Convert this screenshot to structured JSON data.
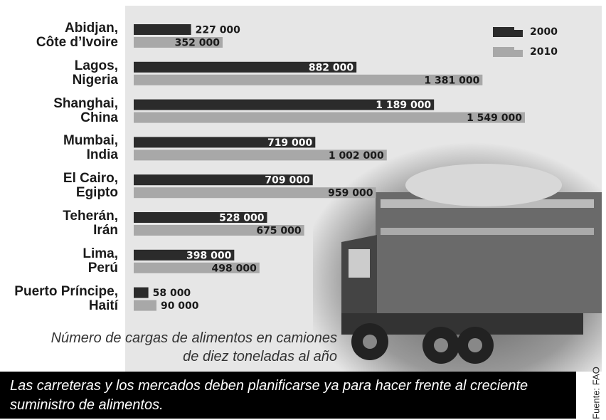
{
  "chart_data": {
    "type": "bar",
    "orientation": "horizontal",
    "categories": [
      "Abidjan,\nCôte d’Ivoire",
      "Lagos,\nNigeria",
      "Shanghai,\nChina",
      "Mumbai,\nIndia",
      "El Cairo,\nEgipto",
      "Teherán,\nIrán",
      "Lima,\nPerú",
      "Puerto Príncipe,\nHaití"
    ],
    "series": [
      {
        "name": "2000",
        "color": "#2b2b2b",
        "values": [
          227000,
          882000,
          1189000,
          719000,
          709000,
          528000,
          398000,
          58000
        ],
        "value_labels": [
          "227 000",
          "882 000",
          "1 189 000",
          "719 000",
          "709 000",
          "528 000",
          "398 000",
          "58 000"
        ]
      },
      {
        "name": "2010",
        "color": "#a8a8a8",
        "values": [
          352000,
          1381000,
          1549000,
          1002000,
          959000,
          675000,
          498000,
          90000
        ],
        "value_labels": [
          "352 000",
          "1 381 000",
          "1 549 000",
          "1 002 000",
          "959 000",
          "675 000",
          "498 000",
          "90 000"
        ]
      }
    ],
    "caption": "Número de cargas de alimentos en camiones\nde diez toneladas al año",
    "note": "Las carreteras y los mercados deben planificarse ya para hacer frente al creciente\nsuministro de alimentos.",
    "source": "Fuente: FAO"
  }
}
